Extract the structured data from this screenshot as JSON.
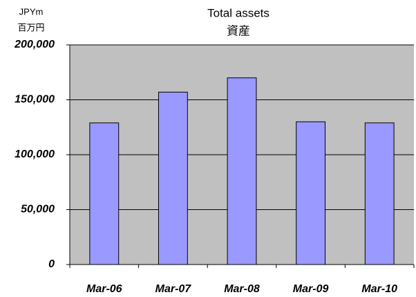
{
  "chart_data": {
    "type": "bar",
    "title": "Total assets",
    "subtitle": "資産",
    "y_label": [
      "JPYm",
      "百万円"
    ],
    "categories": [
      "Mar-06",
      "Mar-07",
      "Mar-08",
      "Mar-09",
      "Mar-10"
    ],
    "values": [
      129000,
      157000,
      170000,
      130000,
      129000
    ],
    "color": "#9999ff",
    "ylim": [
      0,
      200000
    ],
    "yticks": [
      0,
      {
        "value": 50000,
        "label": "50,000"
      },
      {
        "value": 100000,
        "label": "100,000"
      },
      {
        "value": 150000,
        "label": "150,000"
      },
      {
        "value": 200000,
        "label": "200,000"
      }
    ],
    "grid": true
  }
}
